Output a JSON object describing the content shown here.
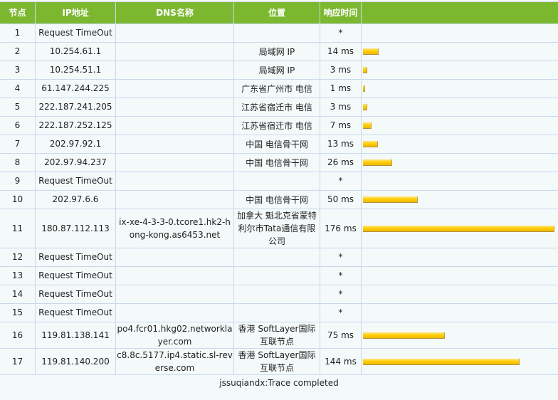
{
  "headers": [
    "节点",
    "IP地址",
    "DNS名称",
    "位置",
    "响应时间",
    ""
  ],
  "max_ms": 176,
  "bar_color": "#ffcc00",
  "header_color": "#7cb82f",
  "rows": [
    {
      "hop": "1",
      "ip": "Request TimeOut",
      "dns": "",
      "loc": "",
      "time": "*",
      "ms": null
    },
    {
      "hop": "2",
      "ip": "10.254.61.1",
      "dns": "",
      "loc": "局域网 IP",
      "time": "14 ms",
      "ms": 14
    },
    {
      "hop": "3",
      "ip": "10.254.51.1",
      "dns": "",
      "loc": "局域网 IP",
      "time": "3 ms",
      "ms": 3
    },
    {
      "hop": "4",
      "ip": "61.147.244.225",
      "dns": "",
      "loc": "广东省广州市 电信",
      "time": "1 ms",
      "ms": 1
    },
    {
      "hop": "5",
      "ip": "222.187.241.205",
      "dns": "",
      "loc": "江苏省宿迁市 电信",
      "time": "3 ms",
      "ms": 3
    },
    {
      "hop": "6",
      "ip": "222.187.252.125",
      "dns": "",
      "loc": "江苏省宿迁市 电信",
      "time": "7 ms",
      "ms": 7
    },
    {
      "hop": "7",
      "ip": "202.97.92.1",
      "dns": "",
      "loc": "中国 电信骨干网",
      "time": "13 ms",
      "ms": 13
    },
    {
      "hop": "8",
      "ip": "202.97.94.237",
      "dns": "",
      "loc": "中国 电信骨干网",
      "time": "26 ms",
      "ms": 26
    },
    {
      "hop": "9",
      "ip": "Request TimeOut",
      "dns": "",
      "loc": "",
      "time": "*",
      "ms": null
    },
    {
      "hop": "10",
      "ip": "202.97.6.6",
      "dns": "",
      "loc": "中国 电信骨干网",
      "time": "50 ms",
      "ms": 50
    },
    {
      "hop": "11",
      "ip": "180.87.112.113",
      "dns": "ix-xe-4-3-3-0.tcore1.hk2-hong-kong.as6453.net",
      "loc": "加拿大 魁北克省蒙特利尔市Tata通信有限公司",
      "time": "176 ms",
      "ms": 176
    },
    {
      "hop": "12",
      "ip": "Request TimeOut",
      "dns": "",
      "loc": "",
      "time": "*",
      "ms": null
    },
    {
      "hop": "13",
      "ip": "Request TimeOut",
      "dns": "",
      "loc": "",
      "time": "*",
      "ms": null
    },
    {
      "hop": "14",
      "ip": "Request TimeOut",
      "dns": "",
      "loc": "",
      "time": "*",
      "ms": null
    },
    {
      "hop": "15",
      "ip": "Request TimeOut",
      "dns": "",
      "loc": "",
      "time": "*",
      "ms": null
    },
    {
      "hop": "16",
      "ip": "119.81.138.141",
      "dns": "po4.fcr01.hkg02.networklayer.com",
      "loc": "香港 SoftLayer国际互联节点",
      "time": "75 ms",
      "ms": 75
    },
    {
      "hop": "17",
      "ip": "119.81.140.200",
      "dns": "c8.8c.5177.ip4.static.sl-reverse.com",
      "loc": "香港 SoftLayer国际互联节点",
      "time": "144 ms",
      "ms": 144
    }
  ],
  "footer": "jssuqiandx:Trace completed"
}
